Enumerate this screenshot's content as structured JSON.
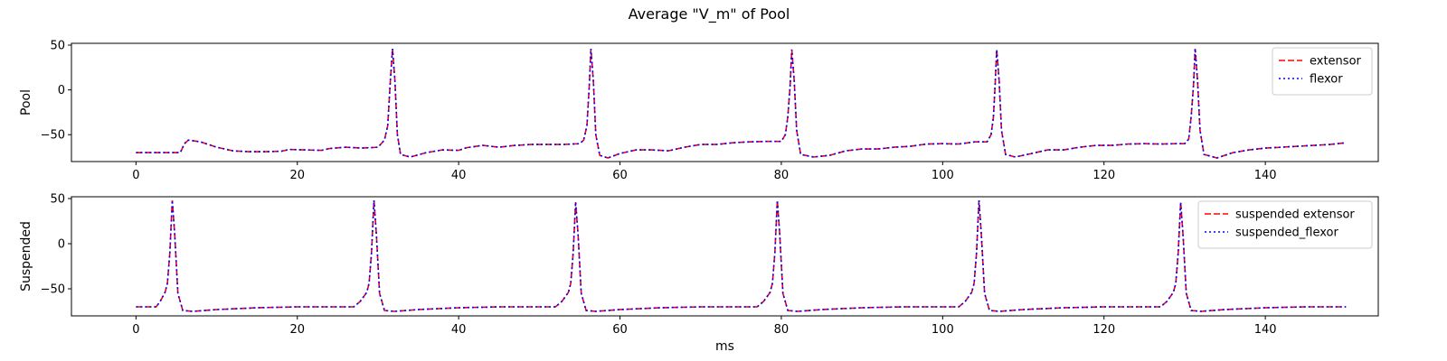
{
  "figure": {
    "title": "Average \"V_m\" of Pool"
  },
  "chart_data": [
    {
      "type": "line",
      "ylabel": "Pool",
      "xlabel": "",
      "xlim": [
        -8,
        154
      ],
      "ylim": [
        -80,
        52
      ],
      "xticks": [
        0,
        20,
        40,
        60,
        80,
        100,
        120,
        140
      ],
      "yticks": [
        50,
        0,
        -50
      ],
      "legend": "top-right",
      "grid": false,
      "baseline": [
        [
          0,
          -70
        ],
        [
          5.5,
          -70
        ],
        [
          6,
          -60
        ],
        [
          6.5,
          -56
        ],
        [
          8,
          -58
        ],
        [
          10,
          -64
        ],
        [
          12,
          -68
        ],
        [
          14,
          -69
        ],
        [
          16,
          -69
        ],
        [
          18,
          -68.5
        ],
        [
          19,
          -66.5
        ],
        [
          21,
          -67
        ],
        [
          23,
          -67.5
        ],
        [
          24,
          -65.5
        ],
        [
          26,
          -64
        ],
        [
          28,
          -65
        ],
        [
          30,
          -64
        ],
        [
          30.8,
          -56
        ],
        [
          31.2,
          -40
        ],
        [
          31.5,
          5
        ],
        [
          31.8,
          46
        ],
        [
          32.1,
          10
        ],
        [
          32.4,
          -50
        ],
        [
          32.8,
          -72
        ],
        [
          34,
          -75
        ],
        [
          36,
          -70
        ],
        [
          38,
          -67
        ],
        [
          40,
          -67.5
        ],
        [
          41,
          -64.5
        ],
        [
          43,
          -62
        ],
        [
          45,
          -64
        ],
        [
          47,
          -62
        ],
        [
          49,
          -61
        ],
        [
          51,
          -61
        ],
        [
          53,
          -61
        ],
        [
          55,
          -60
        ],
        [
          55.5,
          -56
        ],
        [
          55.9,
          -40
        ],
        [
          56.2,
          5
        ],
        [
          56.4,
          46
        ],
        [
          56.7,
          10
        ],
        [
          57,
          -50
        ],
        [
          57.5,
          -73
        ],
        [
          58.5,
          -76
        ],
        [
          60,
          -71
        ],
        [
          62,
          -67
        ],
        [
          64,
          -67
        ],
        [
          66,
          -68
        ],
        [
          67,
          -66
        ],
        [
          68,
          -64
        ],
        [
          70,
          -61
        ],
        [
          72,
          -61
        ],
        [
          74,
          -59
        ],
        [
          76,
          -58
        ],
        [
          78,
          -57.5
        ],
        [
          80,
          -57.5
        ],
        [
          80.5,
          -50
        ],
        [
          80.8,
          -30
        ],
        [
          81.1,
          5
        ],
        [
          81.3,
          45
        ],
        [
          81.6,
          10
        ],
        [
          81.9,
          -45
        ],
        [
          82.4,
          -72
        ],
        [
          84,
          -75
        ],
        [
          86,
          -73
        ],
        [
          88,
          -68
        ],
        [
          90,
          -66
        ],
        [
          92,
          -66
        ],
        [
          94,
          -64
        ],
        [
          96,
          -63
        ],
        [
          98,
          -60.5
        ],
        [
          100,
          -60
        ],
        [
          102,
          -60.5
        ],
        [
          104,
          -58
        ],
        [
          105.5,
          -58
        ],
        [
          106,
          -50
        ],
        [
          106.3,
          -30
        ],
        [
          106.5,
          5
        ],
        [
          106.7,
          45
        ],
        [
          107,
          10
        ],
        [
          107.3,
          -45
        ],
        [
          107.8,
          -72
        ],
        [
          109,
          -75
        ],
        [
          111,
          -71
        ],
        [
          113,
          -67
        ],
        [
          115,
          -67
        ],
        [
          117,
          -64
        ],
        [
          119,
          -62
        ],
        [
          121,
          -62
        ],
        [
          123,
          -60.5
        ],
        [
          125,
          -60
        ],
        [
          127,
          -60.5
        ],
        [
          129,
          -60
        ],
        [
          130,
          -60
        ],
        [
          130.5,
          -55
        ],
        [
          130.8,
          -30
        ],
        [
          131.1,
          5
        ],
        [
          131.3,
          46
        ],
        [
          131.6,
          10
        ],
        [
          131.9,
          -45
        ],
        [
          132.4,
          -72
        ],
        [
          134,
          -76
        ],
        [
          136,
          -70
        ],
        [
          138,
          -67
        ],
        [
          140,
          -65
        ],
        [
          142,
          -64
        ],
        [
          144,
          -63
        ],
        [
          146,
          -62
        ],
        [
          148,
          -61
        ],
        [
          150,
          -59
        ]
      ],
      "series": [
        {
          "name": "extensor",
          "color": "#ff0000",
          "dash": "dashed"
        },
        {
          "name": "flexor",
          "color": "#0000ff",
          "dash": "dotted"
        }
      ]
    },
    {
      "type": "line",
      "ylabel": "Suspended",
      "xlabel": "ms",
      "xlim": [
        -8,
        154
      ],
      "ylim": [
        -80,
        52
      ],
      "xticks": [
        0,
        20,
        40,
        60,
        80,
        100,
        120,
        140
      ],
      "yticks": [
        50,
        0,
        -50
      ],
      "legend": "top-right",
      "grid": false,
      "baseline": [
        [
          0,
          -70
        ],
        [
          2.5,
          -70
        ],
        [
          3,
          -64
        ],
        [
          3.6,
          -54
        ],
        [
          3.9,
          -44
        ],
        [
          4.2,
          -10
        ],
        [
          4.5,
          48
        ],
        [
          4.8,
          10
        ],
        [
          5.2,
          -55
        ],
        [
          5.8,
          -74
        ],
        [
          7,
          -75
        ],
        [
          10,
          -73
        ],
        [
          15,
          -71
        ],
        [
          20,
          -70
        ],
        [
          27,
          -70
        ],
        [
          27.8,
          -64
        ],
        [
          28.6,
          -54
        ],
        [
          28.9,
          -44
        ],
        [
          29.2,
          -10
        ],
        [
          29.5,
          48
        ],
        [
          29.8,
          10
        ],
        [
          30.2,
          -55
        ],
        [
          30.8,
          -74
        ],
        [
          32,
          -75
        ],
        [
          35,
          -73
        ],
        [
          40,
          -71
        ],
        [
          45,
          -70
        ],
        [
          52,
          -70
        ],
        [
          52.8,
          -64
        ],
        [
          53.6,
          -54
        ],
        [
          53.9,
          -44
        ],
        [
          54.2,
          -10
        ],
        [
          54.5,
          46
        ],
        [
          54.8,
          10
        ],
        [
          55.2,
          -55
        ],
        [
          55.8,
          -74
        ],
        [
          57,
          -75
        ],
        [
          60,
          -73
        ],
        [
          65,
          -71
        ],
        [
          70,
          -70
        ],
        [
          77,
          -70
        ],
        [
          77.8,
          -64
        ],
        [
          78.6,
          -54
        ],
        [
          78.9,
          -44
        ],
        [
          79.2,
          -10
        ],
        [
          79.5,
          48
        ],
        [
          79.8,
          10
        ],
        [
          80.2,
          -55
        ],
        [
          80.8,
          -74
        ],
        [
          82,
          -75
        ],
        [
          85,
          -73
        ],
        [
          90,
          -71
        ],
        [
          95,
          -70
        ],
        [
          102,
          -70
        ],
        [
          102.8,
          -64
        ],
        [
          103.6,
          -54
        ],
        [
          103.9,
          -44
        ],
        [
          104.2,
          -10
        ],
        [
          104.5,
          48
        ],
        [
          104.8,
          10
        ],
        [
          105.2,
          -55
        ],
        [
          105.8,
          -74
        ],
        [
          107,
          -75
        ],
        [
          110,
          -73
        ],
        [
          115,
          -71
        ],
        [
          120,
          -70
        ],
        [
          127,
          -70
        ],
        [
          127.8,
          -64
        ],
        [
          128.6,
          -54
        ],
        [
          128.9,
          -44
        ],
        [
          129.2,
          -10
        ],
        [
          129.5,
          46
        ],
        [
          129.8,
          10
        ],
        [
          130.2,
          -55
        ],
        [
          130.8,
          -74
        ],
        [
          132,
          -75
        ],
        [
          135,
          -73
        ],
        [
          140,
          -71
        ],
        [
          145,
          -70
        ],
        [
          150,
          -70
        ]
      ],
      "series": [
        {
          "name": "suspended extensor",
          "color": "#ff0000",
          "dash": "dashed"
        },
        {
          "name": "suspended_flexor",
          "color": "#0000ff",
          "dash": "dotted"
        }
      ]
    }
  ]
}
